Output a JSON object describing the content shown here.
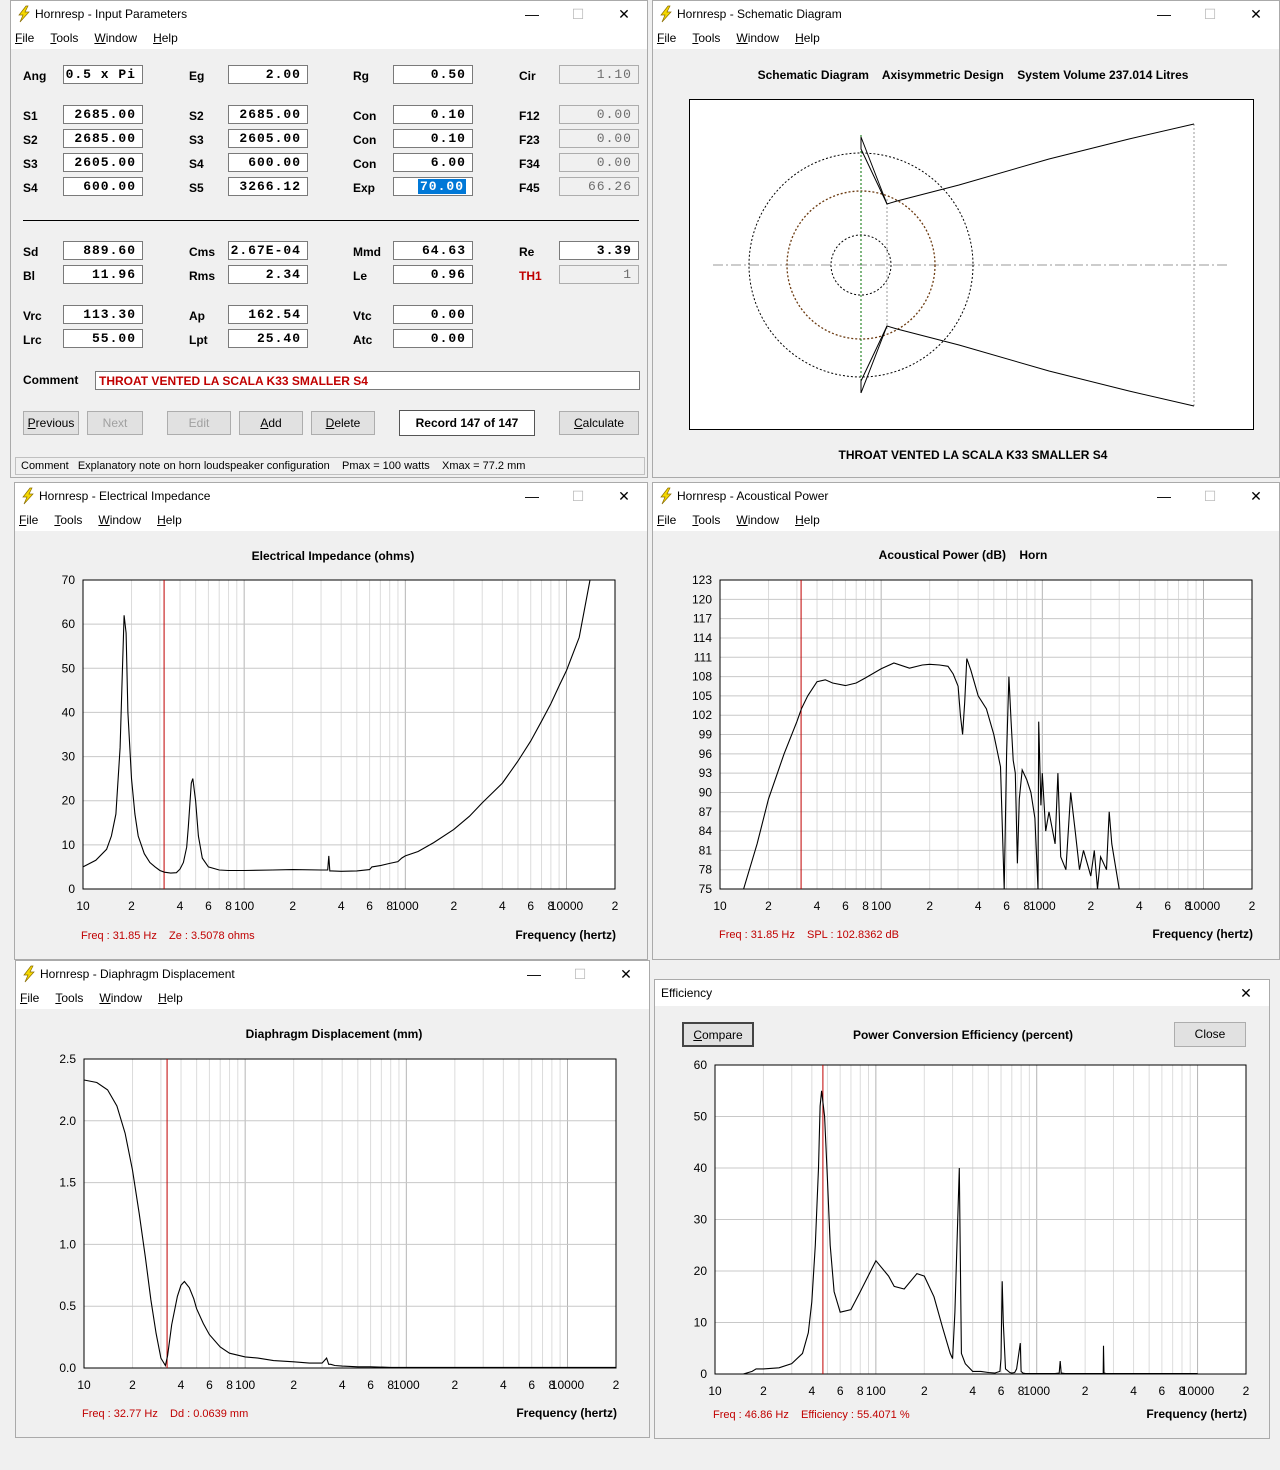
{
  "menus": [
    "File",
    "Tools",
    "Window",
    "Help"
  ],
  "input_window": {
    "title": "Hornresp - Input Parameters",
    "rows": [
      [
        {
          "l": "Ang",
          "v": "0.5 x Pi"
        },
        {
          "l": "Eg",
          "v": "2.00"
        },
        {
          "l": "Rg",
          "v": "0.50"
        },
        {
          "l": "Cir",
          "v": "1.10",
          "ro": true
        }
      ],
      [
        {
          "l": "S1",
          "v": "2685.00"
        },
        {
          "l": "S2",
          "v": "2685.00"
        },
        {
          "l": "Con",
          "v": "0.10"
        },
        {
          "l": "F12",
          "v": "0.00",
          "ro": true
        }
      ],
      [
        {
          "l": "S2",
          "v": "2685.00"
        },
        {
          "l": "S3",
          "v": "2605.00"
        },
        {
          "l": "Con",
          "v": "0.10"
        },
        {
          "l": "F23",
          "v": "0.00",
          "ro": true
        }
      ],
      [
        {
          "l": "S3",
          "v": "2605.00"
        },
        {
          "l": "S4",
          "v": "600.00"
        },
        {
          "l": "Con",
          "v": "6.00"
        },
        {
          "l": "F34",
          "v": "0.00",
          "ro": true
        }
      ],
      [
        {
          "l": "S4",
          "v": "600.00"
        },
        {
          "l": "S5",
          "v": "3266.12"
        },
        {
          "l": "Exp",
          "v": "70.00",
          "sel": true
        },
        {
          "l": "F45",
          "v": "66.26",
          "ro": true
        }
      ],
      [
        {
          "l": "Sd",
          "v": "889.60"
        },
        {
          "l": "Cms",
          "v": "2.67E-04"
        },
        {
          "l": "Mmd",
          "v": "64.63"
        },
        {
          "l": "Re",
          "v": "3.39"
        }
      ],
      [
        {
          "l": "Bl",
          "v": "11.96"
        },
        {
          "l": "Rms",
          "v": "2.34"
        },
        {
          "l": "Le",
          "v": "0.96"
        },
        {
          "l": "TH1",
          "v": "1",
          "ro": true,
          "red": true
        }
      ],
      [
        {
          "l": "Vrc",
          "v": "113.30"
        },
        {
          "l": "Ap",
          "v": "162.54"
        },
        {
          "l": "Vtc",
          "v": "0.00"
        }
      ],
      [
        {
          "l": "Lrc",
          "v": "55.00"
        },
        {
          "l": "Lpt",
          "v": "25.40"
        },
        {
          "l": "Atc",
          "v": "0.00"
        }
      ]
    ],
    "comment_label": "Comment",
    "comment_value": "THROAT VENTED LA SCALA K33 SMALLER S4",
    "buttons": {
      "previous": "Previous",
      "next": "Next",
      "edit": "Edit",
      "add": "Add",
      "delete": "Delete",
      "calculate": "Calculate"
    },
    "record": "Record 147 of 147",
    "statusbar": "Comment   Explanatory note on horn loudspeaker configuration    Pmax = 100 watts    Xmax = 77.2 mm"
  },
  "schematic_window": {
    "title": "Hornresp - Schematic Diagram",
    "header": "Schematic Diagram    Axisymmetric Design    System Volume 237.014 Litres",
    "caption": "THROAT VENTED LA SCALA K33 SMALLER S4"
  },
  "impedance_window": {
    "title": "Hornresp - Electrical Impedance",
    "chart_title": "Electrical Impedance (ohms)",
    "status_freq": "Freq : 31.85 Hz",
    "status_val": "Ze : 3.5078 ohms",
    "xlabel": "Frequency (hertz)"
  },
  "power_window": {
    "title": "Hornresp - Acoustical Power",
    "chart_title": "Acoustical Power (dB)    Horn",
    "status_freq": "Freq : 31.85 Hz",
    "status_val": "SPL : 102.8362 dB",
    "xlabel": "Frequency (hertz)"
  },
  "displacement_window": {
    "title": "Hornresp - Diaphragm Displacement",
    "chart_title": "Diaphragm Displacement (mm)",
    "status_freq": "Freq : 32.77 Hz",
    "status_val": "Dd : 0.0639 mm",
    "xlabel": "Frequency (hertz)"
  },
  "efficiency_window": {
    "title": "Efficiency",
    "chart_title": "Power Conversion Efficiency (percent)",
    "compare": "Compare",
    "close": "Close",
    "status_freq": "Freq : 46.86 Hz",
    "status_val": "Efficiency : 55.4071 %",
    "xlabel": "Frequency (hertz)"
  },
  "colors": {
    "curve": "#000000",
    "cursor": "#c00000",
    "grid": "#c8c8c8",
    "label_red": "#c00000",
    "selection": "#0078d7"
  },
  "chart_data": [
    {
      "type": "line",
      "name": "impedance",
      "log_x": true,
      "xlim": [
        10,
        20000
      ],
      "ylim": [
        0,
        70
      ],
      "yticks": [
        0,
        10,
        20,
        30,
        40,
        50,
        60,
        70
      ],
      "ytick_labels": [
        "0",
        "10",
        "20",
        "30",
        "40",
        "50",
        "60",
        "70"
      ],
      "xtick_labels": [
        "10",
        "2",
        "4",
        "6",
        "8",
        "100",
        "2",
        "4",
        "6",
        "8",
        "1000",
        "2",
        "4",
        "6",
        "8",
        "10000",
        "2"
      ],
      "cursor_x": 31.85,
      "x": [
        10,
        12,
        14,
        15,
        16,
        17,
        17.5,
        18,
        18.5,
        19,
        20,
        21,
        22,
        24,
        26,
        28,
        30,
        32,
        35,
        38,
        40,
        42,
        44,
        45,
        46,
        47,
        48,
        50,
        52,
        55,
        60,
        70,
        80,
        100,
        150,
        200,
        300,
        330,
        335,
        340,
        350,
        400,
        500,
        600,
        620,
        700,
        800,
        900,
        950,
        1000,
        1200,
        1500,
        2000,
        2500,
        3000,
        4000,
        5000,
        6000,
        7000,
        8000,
        9000,
        10000,
        12000,
        14000
      ],
      "y": [
        5,
        6.5,
        9,
        12,
        17,
        32,
        48,
        62,
        58,
        40,
        25,
        17,
        12,
        8,
        6,
        5,
        4.2,
        3.8,
        3.6,
        3.7,
        4.5,
        6,
        9.5,
        14,
        19,
        24,
        25,
        20,
        12,
        7,
        5,
        4.3,
        4.2,
        4.2,
        4.3,
        4.4,
        4.3,
        4.3,
        7.5,
        4.1,
        4.1,
        4,
        4.1,
        4.4,
        5,
        5.3,
        5.8,
        6.2,
        7,
        7.5,
        8.5,
        10.5,
        13.5,
        16.5,
        19.5,
        24,
        29,
        33.5,
        38,
        42,
        46,
        49.5,
        57,
        70
      ]
    },
    {
      "type": "line",
      "name": "acoustical_power",
      "log_x": true,
      "xlim": [
        10,
        20000
      ],
      "ylim": [
        75,
        123
      ],
      "yticks": [
        75,
        78,
        81,
        84,
        87,
        90,
        93,
        96,
        99,
        102,
        105,
        108,
        111,
        114,
        117,
        120,
        123
      ],
      "ytick_labels": [
        "75",
        "78",
        "81",
        "84",
        "87",
        "90",
        "93",
        "96",
        "99",
        "102",
        "105",
        "108",
        "111",
        "114",
        "117",
        "120",
        "123"
      ],
      "xtick_labels": [
        "10",
        "2",
        "4",
        "6",
        "8",
        "100",
        "2",
        "4",
        "6",
        "8",
        "1000",
        "2",
        "4",
        "6",
        "8",
        "10000",
        "2"
      ],
      "cursor_x": 31.85,
      "x": [
        14,
        17,
        20,
        25,
        30,
        32,
        35,
        40,
        45,
        50,
        60,
        70,
        80,
        100,
        120,
        150,
        180,
        200,
        230,
        260,
        280,
        300,
        310,
        320,
        330,
        340,
        360,
        400,
        450,
        500,
        550,
        580,
        600,
        620,
        640,
        660,
        680,
        700,
        720,
        750,
        800,
        850,
        900,
        940,
        950,
        980,
        1000,
        1050,
        1100,
        1200,
        1250,
        1300,
        1400,
        1500,
        1600,
        1700,
        1800,
        1900,
        2000,
        2100,
        2200,
        2300,
        2500,
        2600,
        2700,
        3000
      ],
      "y": [
        75,
        82,
        89,
        96,
        101,
        103,
        105,
        107.2,
        107.5,
        107,
        106.6,
        107,
        107.8,
        109.2,
        110.1,
        109.3,
        109.8,
        109.9,
        109.8,
        109.6,
        108.4,
        106.5,
        102,
        99,
        104,
        110.8,
        109,
        105,
        103,
        99,
        94,
        75,
        96,
        108,
        101,
        95,
        93,
        79,
        89,
        93.5,
        92,
        90,
        86,
        75,
        101,
        88,
        93,
        84,
        87,
        82,
        93,
        80,
        78,
        90,
        84,
        78,
        81,
        79,
        77,
        81,
        75,
        80,
        78,
        87,
        82,
        75
      ]
    },
    {
      "type": "line",
      "name": "diaphragm_displacement",
      "log_x": true,
      "xlim": [
        10,
        20000
      ],
      "ylim": [
        0,
        2.5
      ],
      "yticks": [
        0,
        0.5,
        1,
        1.5,
        2,
        2.5
      ],
      "ytick_labels": [
        "0.0",
        "0.5",
        "1.0",
        "1.5",
        "2.0",
        "2.5"
      ],
      "xtick_labels": [
        "10",
        "2",
        "4",
        "6",
        "8",
        "100",
        "2",
        "4",
        "6",
        "8",
        "1000",
        "2",
        "4",
        "6",
        "8",
        "10000",
        "2"
      ],
      "cursor_x": 32.77,
      "x": [
        10,
        12,
        14,
        16,
        18,
        20,
        22,
        24,
        26,
        28,
        30,
        32,
        33,
        35,
        38,
        40,
        42,
        45,
        48,
        50,
        55,
        60,
        70,
        80,
        100,
        120,
        150,
        200,
        250,
        300,
        320,
        330,
        340,
        360,
        400,
        500,
        600,
        800,
        1000,
        2000,
        5000,
        10000,
        20000
      ],
      "y": [
        2.33,
        2.31,
        2.25,
        2.12,
        1.9,
        1.6,
        1.25,
        0.9,
        0.55,
        0.28,
        0.08,
        0.02,
        0.1,
        0.35,
        0.58,
        0.67,
        0.7,
        0.65,
        0.56,
        0.48,
        0.36,
        0.27,
        0.17,
        0.12,
        0.09,
        0.08,
        0.06,
        0.05,
        0.04,
        0.04,
        0.08,
        0.03,
        0.03,
        0.02,
        0.015,
        0.01,
        0.01,
        0.005,
        0.005,
        0.005,
        0.005,
        0.005,
        0.005
      ]
    },
    {
      "type": "line",
      "name": "efficiency",
      "log_x": true,
      "xlim": [
        10,
        20000
      ],
      "ylim": [
        0,
        60
      ],
      "yticks": [
        0,
        10,
        20,
        30,
        40,
        50,
        60
      ],
      "ytick_labels": [
        "0",
        "10",
        "20",
        "30",
        "40",
        "50",
        "60"
      ],
      "xtick_labels": [
        "10",
        "2",
        "4",
        "6",
        "8",
        "100",
        "2",
        "4",
        "6",
        "8",
        "1000",
        "2",
        "4",
        "6",
        "8",
        "10000",
        "2"
      ],
      "cursor_x": 46.86,
      "x": [
        15,
        17,
        18,
        20,
        25,
        30,
        35,
        38,
        40,
        42,
        44,
        45,
        46,
        48,
        50,
        52,
        55,
        60,
        70,
        80,
        100,
        120,
        130,
        150,
        180,
        200,
        230,
        260,
        290,
        300,
        310,
        330,
        340,
        360,
        400,
        450,
        500,
        550,
        590,
        600,
        610,
        620,
        640,
        680,
        700,
        730,
        750,
        790,
        800,
        820,
        850,
        900,
        1000,
        1100,
        1200,
        1300,
        1380,
        1400,
        1420,
        1500,
        2000,
        2500,
        2590,
        2600,
        2620,
        2700,
        3000,
        5000,
        8000,
        10000
      ],
      "y": [
        0,
        0.5,
        1,
        1,
        1.2,
        2,
        4,
        8,
        14,
        25,
        40,
        52,
        55,
        50,
        38,
        25,
        16,
        12,
        12.5,
        16,
        22,
        19,
        17,
        16.5,
        19.5,
        19,
        15,
        9,
        4,
        3,
        12,
        40,
        4,
        2,
        0.5,
        0.5,
        0.3,
        0.2,
        0.5,
        3,
        18,
        10,
        1,
        0.3,
        0.2,
        0.3,
        1,
        6,
        0.5,
        0.2,
        0.1,
        0.1,
        0.1,
        0.1,
        0.1,
        0.1,
        0.2,
        2.5,
        0.2,
        0.1,
        0.1,
        0.1,
        0.1,
        5.5,
        0.2,
        0.1,
        0.1,
        0.1,
        0.1,
        0.1
      ]
    }
  ]
}
